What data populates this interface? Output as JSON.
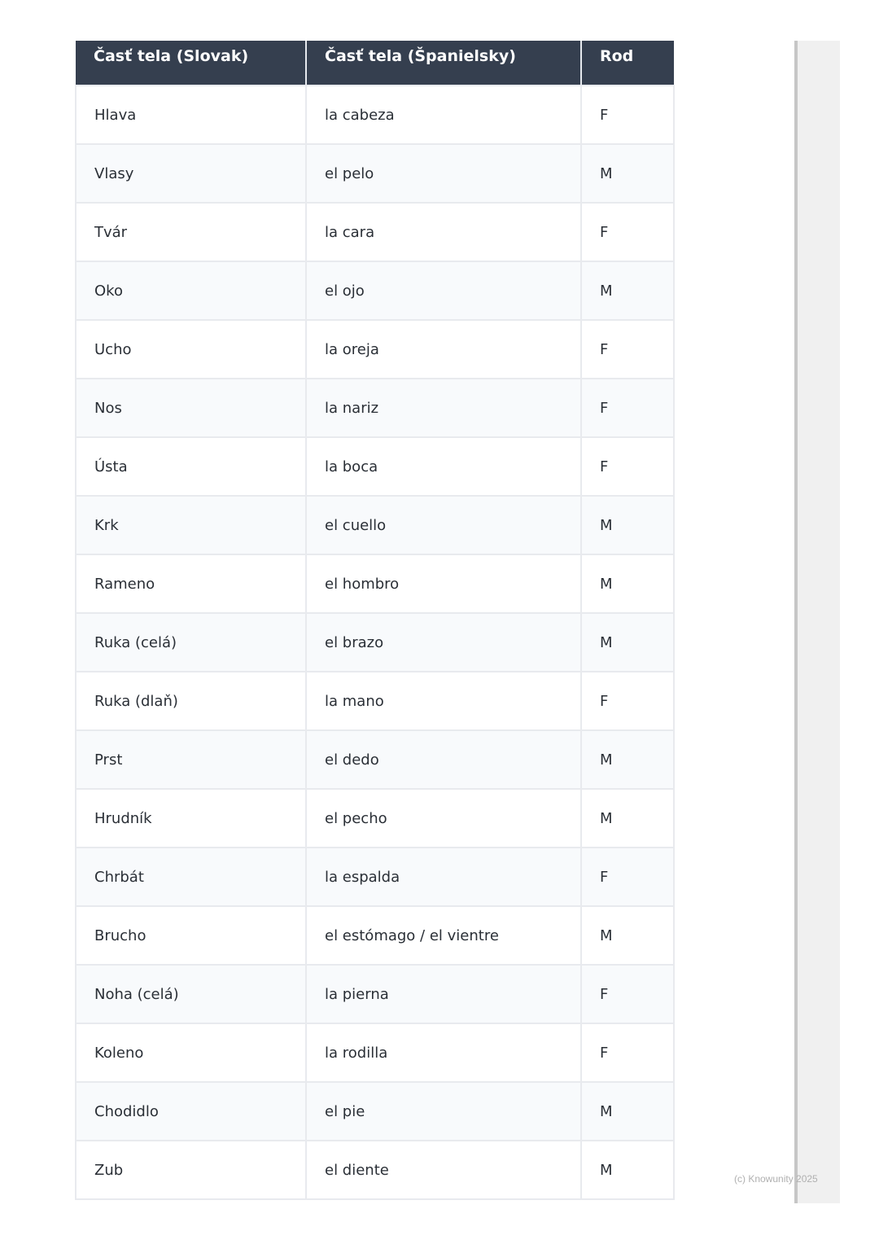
{
  "table": {
    "headers": [
      "Časť tela (Slovak)",
      "Časť tela (Španielsky)",
      "Rod"
    ],
    "rows": [
      [
        "Hlava",
        "la cabeza",
        "F"
      ],
      [
        "Vlasy",
        "el pelo",
        "M"
      ],
      [
        "Tvár",
        "la cara",
        "F"
      ],
      [
        "Oko",
        "el ojo",
        "M"
      ],
      [
        "Ucho",
        "la oreja",
        "F"
      ],
      [
        "Nos",
        "la nariz",
        "F"
      ],
      [
        "Ústa",
        "la boca",
        "F"
      ],
      [
        "Krk",
        "el cuello",
        "M"
      ],
      [
        "Rameno",
        "el hombro",
        "M"
      ],
      [
        "Ruka (celá)",
        "el brazo",
        "M"
      ],
      [
        "Ruka (dlaň)",
        "la mano",
        "F"
      ],
      [
        "Prst",
        "el dedo",
        "M"
      ],
      [
        "Hrudník",
        "el pecho",
        "M"
      ],
      [
        "Chrbát",
        "la espalda",
        "F"
      ],
      [
        "Brucho",
        "el estómago / el vientre",
        "M"
      ],
      [
        "Noha (celá)",
        "la pierna",
        "F"
      ],
      [
        "Koleno",
        "la rodilla",
        "F"
      ],
      [
        "Chodidlo",
        "el pie",
        "M"
      ],
      [
        "Zub",
        "el diente",
        "M"
      ]
    ]
  },
  "footer": {
    "copyright": "(c) Knowunity 2025"
  },
  "colors": {
    "header_bg": "#353f4f",
    "alt_row": "#f8fafc"
  }
}
